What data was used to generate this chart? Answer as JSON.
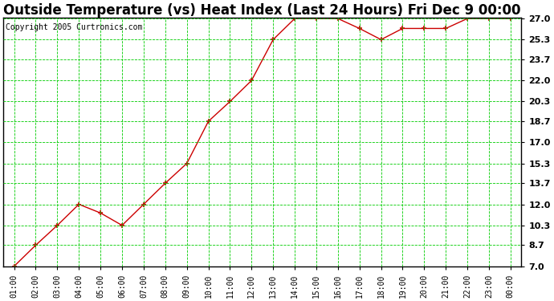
{
  "title": "Outside Temperature (vs) Heat Index (Last 24 Hours) Fri Dec 9 00:00",
  "copyright": "Copyright 2005 Curtronics.com",
  "x_labels": [
    "01:00",
    "02:00",
    "03:00",
    "04:00",
    "05:00",
    "06:00",
    "07:00",
    "08:00",
    "09:00",
    "10:00",
    "11:00",
    "12:00",
    "13:00",
    "14:00",
    "15:00",
    "16:00",
    "17:00",
    "18:00",
    "19:00",
    "20:00",
    "21:00",
    "22:00",
    "23:00",
    "00:00"
  ],
  "y_values": [
    7.0,
    8.7,
    10.3,
    12.0,
    11.3,
    10.3,
    12.0,
    13.7,
    15.3,
    18.7,
    20.3,
    22.0,
    25.3,
    27.0,
    27.0,
    27.0,
    26.2,
    25.3,
    26.2,
    26.2,
    26.2,
    27.0,
    27.0,
    27.0
  ],
  "y_ticks": [
    7.0,
    8.7,
    10.3,
    12.0,
    13.7,
    15.3,
    17.0,
    18.7,
    20.3,
    22.0,
    23.7,
    25.3,
    27.0
  ],
  "y_tick_labels": [
    "7.0",
    "8.7",
    "10.3",
    "12.0",
    "13.7",
    "15.3",
    "17.0",
    "18.7",
    "20.3",
    "22.0",
    "23.7",
    "25.3",
    "27.0"
  ],
  "y_min": 7.0,
  "y_max": 27.0,
  "line_color": "#cc0000",
  "marker": "+",
  "marker_size": 4,
  "bg_color": "#ffffff",
  "plot_bg_color": "#ffffff",
  "grid_color": "#00cc00",
  "title_fontsize": 12,
  "copyright_fontsize": 7,
  "tick_fontsize": 8,
  "x_tick_fontsize": 7
}
